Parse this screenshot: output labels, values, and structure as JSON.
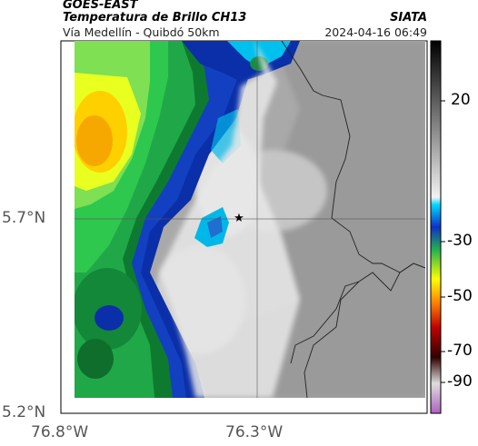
{
  "header": {
    "satellite": "GOES-EAST",
    "product": "Temperatura de Brillo CH13",
    "region": "Vía Medellín - Quibdó 50km",
    "organization": "SIATA",
    "timestamp": "2024-04-16 06:49"
  },
  "map": {
    "lat_labels": [
      "5.7°N",
      "5.2°N"
    ],
    "lon_labels": [
      "76.8°W",
      "76.3°W"
    ],
    "marker_icon": "star-icon"
  },
  "colorbar": {
    "labels": [
      "20",
      "-30",
      "-50",
      "-70",
      "-90"
    ],
    "colors": [
      "#000000",
      "#ffffff",
      "#00c8ff",
      "#0033cc",
      "#22b04c",
      "#ffff00",
      "#ff8c00",
      "#cc0000",
      "#300000",
      "#cc66cc"
    ]
  }
}
